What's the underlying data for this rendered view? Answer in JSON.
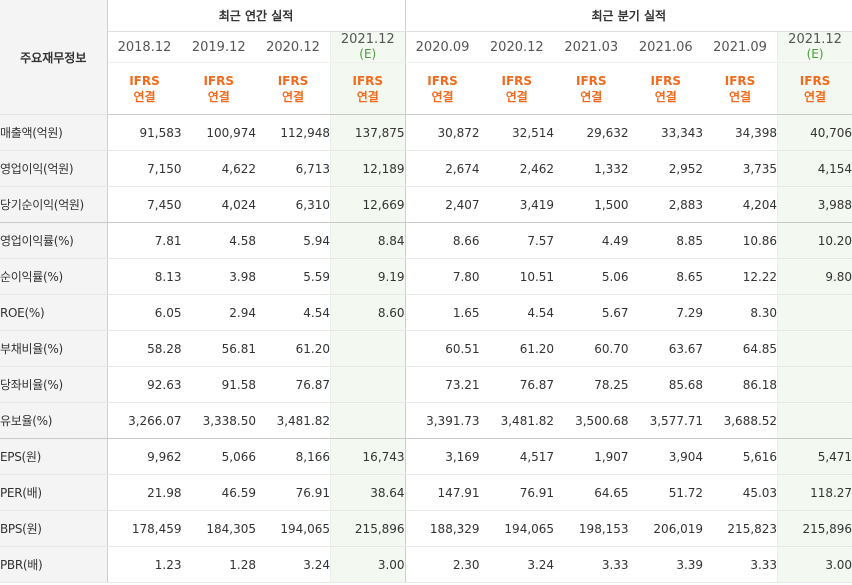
{
  "header": {
    "label_title": "주요재무정보",
    "group_annual": "최근 연간 실적",
    "group_quarterly": "최근 분기 실적",
    "periods": [
      "2018.12",
      "2019.12",
      "2020.12",
      "2021.12",
      "2020.09",
      "2020.12",
      "2021.03",
      "2021.06",
      "2021.09",
      "2021.12"
    ],
    "estimate_marker": "(E)",
    "ifrs_line1": "IFRS",
    "ifrs_line2": "연결"
  },
  "rows": [
    {
      "label": "매출액(억원)",
      "values": [
        "91,583",
        "100,974",
        "112,948",
        "137,875",
        "30,872",
        "32,514",
        "29,632",
        "33,343",
        "34,398",
        "40,706"
      ]
    },
    {
      "label": "영업이익(억원)",
      "values": [
        "7,150",
        "4,622",
        "6,713",
        "12,189",
        "2,674",
        "2,462",
        "1,332",
        "2,952",
        "3,735",
        "4,154"
      ]
    },
    {
      "label": "당기순이익(억원)",
      "values": [
        "7,450",
        "4,024",
        "6,310",
        "12,669",
        "2,407",
        "3,419",
        "1,500",
        "2,883",
        "4,204",
        "3,988"
      ]
    },
    {
      "label": "영업이익률(%)",
      "values": [
        "7.81",
        "4.58",
        "5.94",
        "8.84",
        "8.66",
        "7.57",
        "4.49",
        "8.85",
        "10.86",
        "10.20"
      ]
    },
    {
      "label": "순이익률(%)",
      "values": [
        "8.13",
        "3.98",
        "5.59",
        "9.19",
        "7.80",
        "10.51",
        "5.06",
        "8.65",
        "12.22",
        "9.80"
      ]
    },
    {
      "label": "ROE(%)",
      "values": [
        "6.05",
        "2.94",
        "4.54",
        "8.60",
        "1.65",
        "4.54",
        "5.67",
        "7.29",
        "8.30",
        ""
      ]
    },
    {
      "label": "부채비율(%)",
      "values": [
        "58.28",
        "56.81",
        "61.20",
        "",
        "60.51",
        "61.20",
        "60.70",
        "63.67",
        "64.85",
        ""
      ]
    },
    {
      "label": "당좌비율(%)",
      "values": [
        "92.63",
        "91.58",
        "76.87",
        "",
        "73.21",
        "76.87",
        "78.25",
        "85.68",
        "86.18",
        ""
      ]
    },
    {
      "label": "유보율(%)",
      "values": [
        "3,266.07",
        "3,338.50",
        "3,481.82",
        "",
        "3,391.73",
        "3,481.82",
        "3,500.68",
        "3,577.71",
        "3,688.52",
        ""
      ]
    },
    {
      "label": "EPS(원)",
      "values": [
        "9,962",
        "5,066",
        "8,166",
        "16,743",
        "3,169",
        "4,517",
        "1,907",
        "3,904",
        "5,616",
        "5,471"
      ]
    },
    {
      "label": "PER(배)",
      "values": [
        "21.98",
        "46.59",
        "76.91",
        "38.64",
        "147.91",
        "76.91",
        "64.65",
        "51.72",
        "45.03",
        "118.27"
      ]
    },
    {
      "label": "BPS(원)",
      "values": [
        "178,459",
        "184,305",
        "194,065",
        "215,896",
        "188,329",
        "194,065",
        "198,153",
        "206,019",
        "215,823",
        "215,896"
      ]
    },
    {
      "label": "PBR(배)",
      "values": [
        "1.23",
        "1.28",
        "3.24",
        "3.00",
        "2.30",
        "3.24",
        "3.33",
        "3.39",
        "3.33",
        "3.00"
      ]
    }
  ],
  "colors": {
    "ifrs_text": "#f26b1d",
    "estimate_bg": "#f3f9f1",
    "estimate_marker": "#4a9b3c",
    "label_bg": "#f4f4f4"
  }
}
